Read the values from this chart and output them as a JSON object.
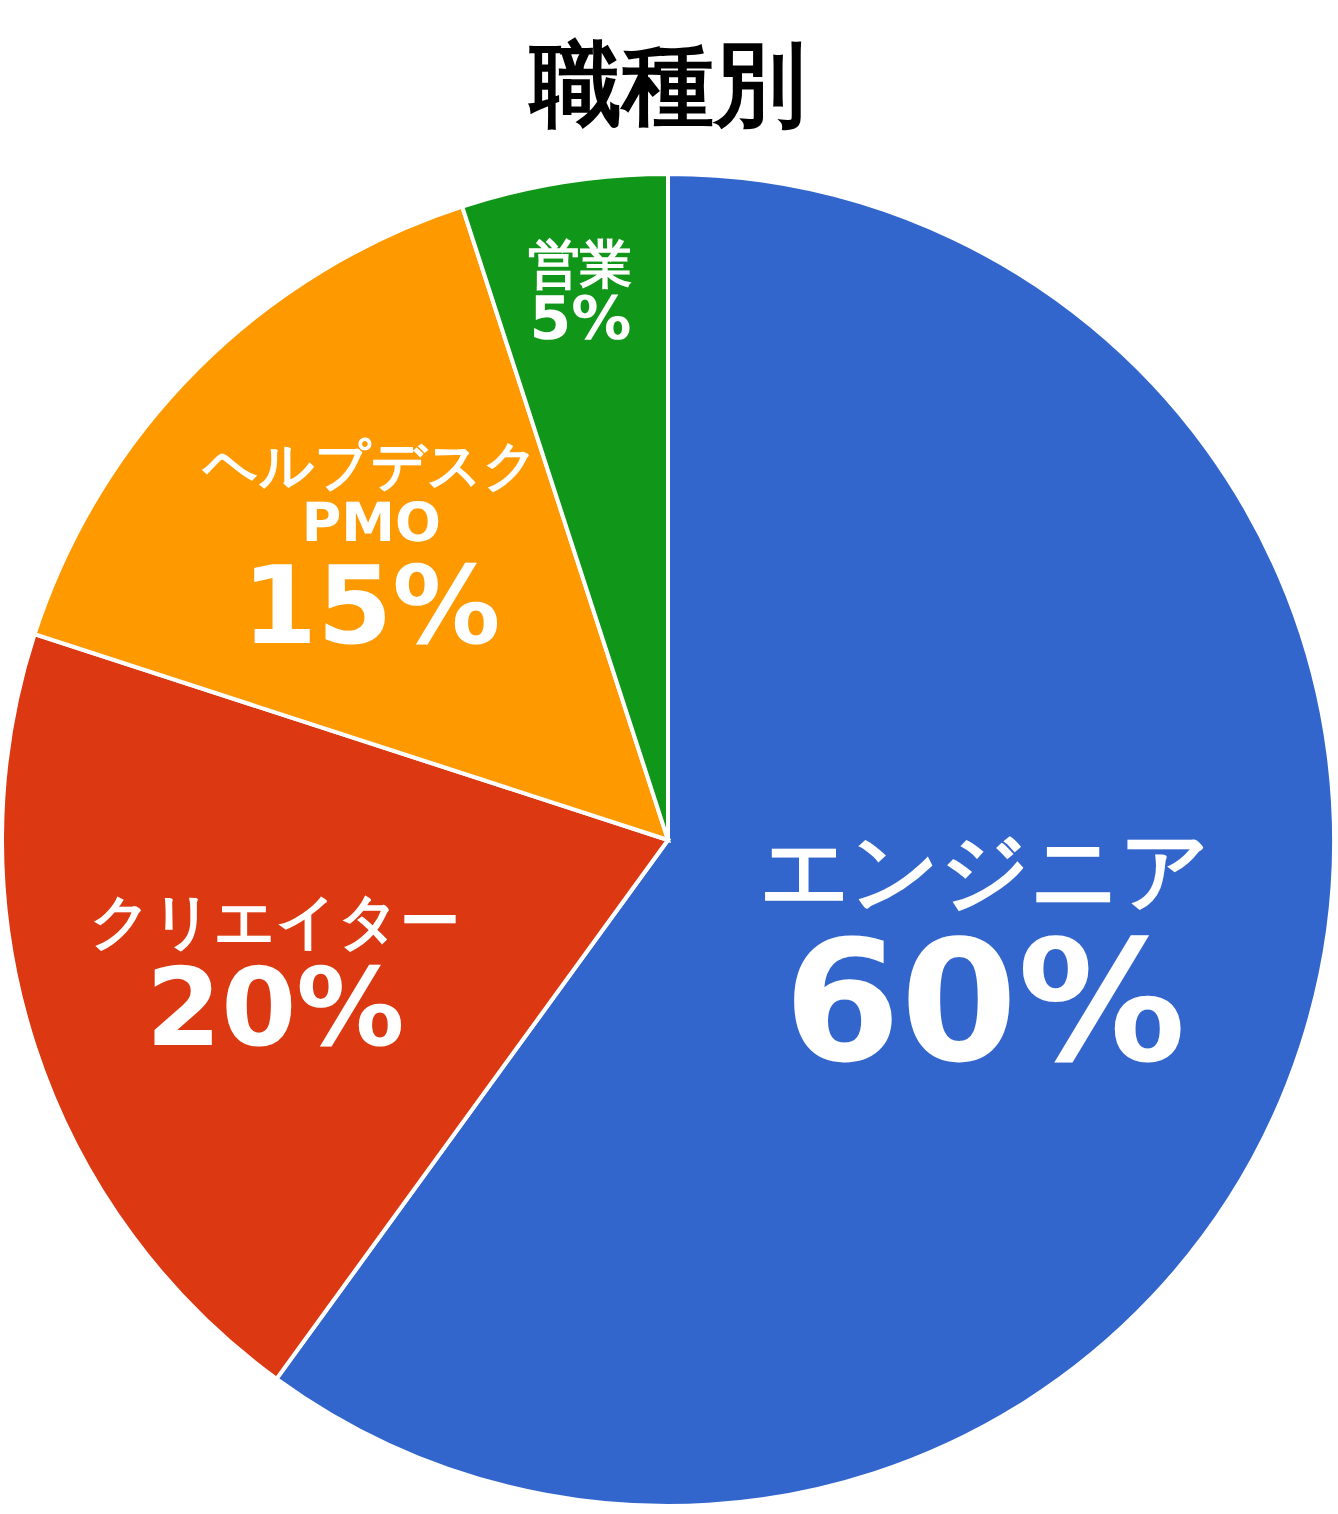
{
  "chart_data": {
    "type": "pie",
    "title": "職種別",
    "categories": [
      "エンジニア",
      "クリエイター",
      "ヘルプデスク\nPMO",
      "営業"
    ],
    "values": [
      60,
      20,
      15,
      5
    ],
    "colors": [
      "#3366cc",
      "#dc3912",
      "#ff9900",
      "#109618"
    ],
    "value_labels": [
      "60%",
      "20%",
      "15%",
      "5%"
    ]
  }
}
